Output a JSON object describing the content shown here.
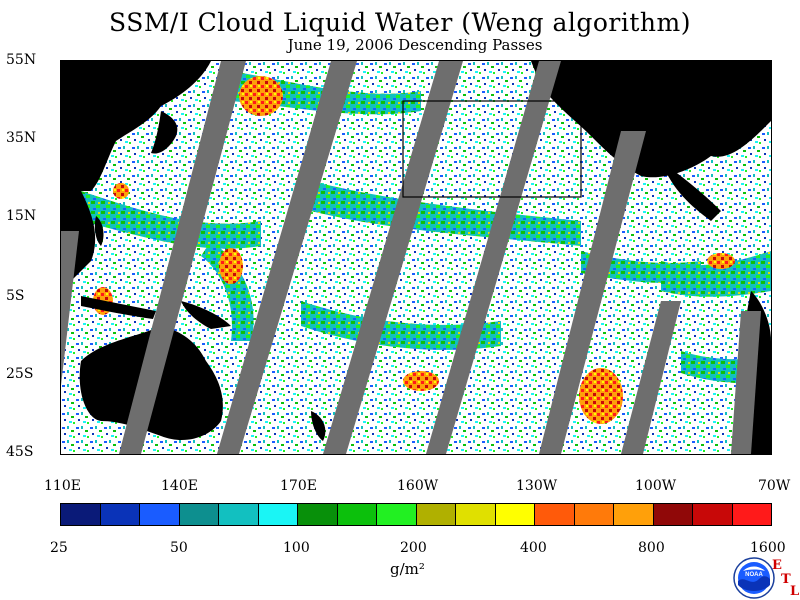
{
  "header": {
    "title": "SSM/I Cloud Liquid Water (Weng algorithm)",
    "subtitle": "June 19, 2006  Descending Passes"
  },
  "map": {
    "lat_labels": [
      "55N",
      "35N",
      "15N",
      "5S",
      "25S",
      "45S"
    ],
    "lon_labels": [
      "110E",
      "140E",
      "170E",
      "160W",
      "130W",
      "100W",
      "70W"
    ],
    "colors": {
      "land": "#000000",
      "no_data_gap": "#6e6e6e",
      "clear_ocean": "#ffffff",
      "region_box": "#000000"
    }
  },
  "legend": {
    "ticks": [
      "25",
      "50",
      "100",
      "200",
      "400",
      "800",
      "1600"
    ],
    "unit": "g/m²",
    "colors": [
      "#0a1a78",
      "#0a33b8",
      "#1a5cff",
      "#0d8f8f",
      "#12c0c0",
      "#1af5f5",
      "#08900a",
      "#0cc00c",
      "#22f022",
      "#b0b000",
      "#e0e000",
      "#ffff00",
      "#ff5a0a",
      "#ff7a0a",
      "#ffa00a",
      "#900808",
      "#c80808",
      "#ff1a1a"
    ]
  },
  "logos": {
    "noaa": "NOAA",
    "etl": [
      "E",
      "T",
      "L"
    ]
  }
}
